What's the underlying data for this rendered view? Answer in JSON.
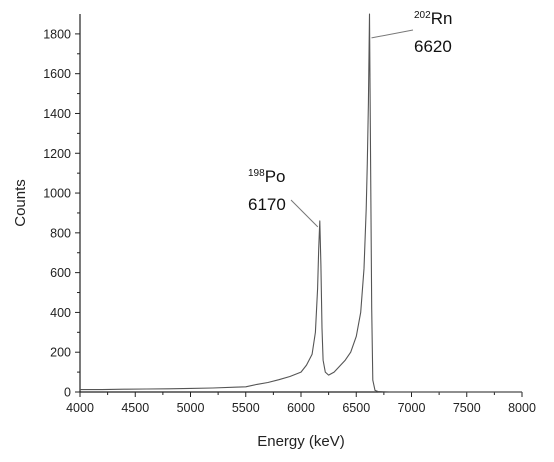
{
  "chart_data": {
    "type": "line",
    "title": "",
    "xlabel": "Energy (keV)",
    "ylabel": "Counts",
    "xlim": [
      4000,
      8000
    ],
    "ylim": [
      0,
      1900
    ],
    "x_ticks": [
      "4000",
      "4500",
      "5000",
      "5500",
      "6000",
      "6500",
      "7000",
      "7500",
      "8000"
    ],
    "y_ticks": [
      "0",
      "200",
      "400",
      "600",
      "800",
      "1000",
      "1200",
      "1400",
      "1600",
      "1800"
    ],
    "grid": false,
    "legend": "none",
    "line_color": "#555555",
    "series": [
      {
        "x": [
          4000,
          4200,
          4400,
          4600,
          4800,
          5000,
          5200,
          5400,
          5500,
          5600,
          5700,
          5800,
          5900,
          6000,
          6050,
          6100,
          6130,
          6150,
          6160,
          6170,
          6180,
          6190,
          6200,
          6220,
          6250,
          6300,
          6350,
          6400,
          6450,
          6500,
          6540,
          6570,
          6590,
          6600,
          6610,
          6620,
          6630,
          6640,
          6650,
          6670,
          6700,
          6800,
          7000,
          7200,
          7500,
          7800,
          8000
        ],
        "y": [
          12,
          12,
          14,
          15,
          16,
          18,
          20,
          24,
          26,
          38,
          48,
          62,
          78,
          100,
          135,
          190,
          300,
          520,
          720,
          860,
          640,
          320,
          160,
          100,
          85,
          100,
          130,
          160,
          200,
          280,
          400,
          620,
          920,
          1150,
          1450,
          1900,
          1150,
          420,
          60,
          8,
          2,
          0,
          0,
          0,
          0,
          0,
          0
        ]
      }
    ],
    "annotations": [
      {
        "sup": "198",
        "label": "Po",
        "value": "6170",
        "x": 6170,
        "y": 860
      },
      {
        "sup": "202",
        "label": "Rn",
        "value": "6620",
        "x": 6620,
        "y": 1780
      }
    ]
  }
}
